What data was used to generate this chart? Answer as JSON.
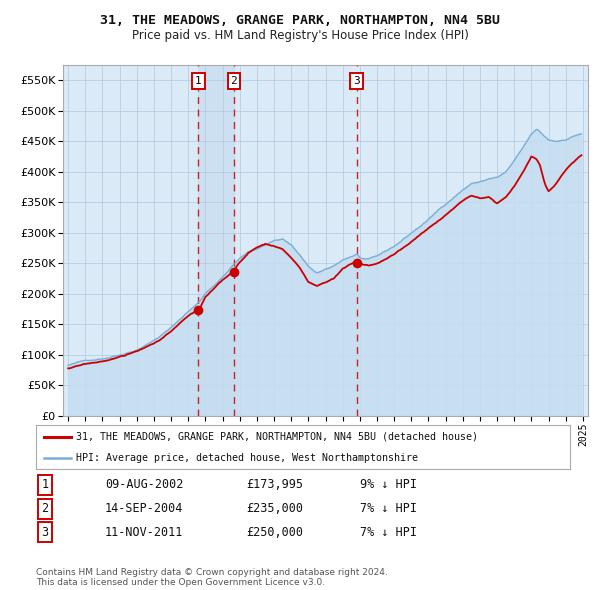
{
  "title1": "31, THE MEADOWS, GRANGE PARK, NORTHAMPTON, NN4 5BU",
  "title2": "Price paid vs. HM Land Registry's House Price Index (HPI)",
  "legend_red": "31, THE MEADOWS, GRANGE PARK, NORTHAMPTON, NN4 5BU (detached house)",
  "legend_blue": "HPI: Average price, detached house, West Northamptonshire",
  "sale1_date": "09-AUG-2002",
  "sale1_price": 173995,
  "sale1_pct": "9% ↓ HPI",
  "sale2_date": "14-SEP-2004",
  "sale2_price": 235000,
  "sale2_pct": "7% ↓ HPI",
  "sale3_date": "11-NOV-2011",
  "sale3_price": 250000,
  "sale3_pct": "7% ↓ HPI",
  "footer1": "Contains HM Land Registry data © Crown copyright and database right 2024.",
  "footer2": "This data is licensed under the Open Government Licence v3.0.",
  "plot_bg": "#daeaf7",
  "red_color": "#cc0000",
  "blue_color": "#7aaed6",
  "blue_fill": "#c5ddf0",
  "grid_color": "#b0c8e0",
  "ylim": [
    0,
    575000
  ],
  "yticks": [
    0,
    50000,
    100000,
    150000,
    200000,
    250000,
    300000,
    350000,
    400000,
    450000,
    500000,
    550000
  ]
}
